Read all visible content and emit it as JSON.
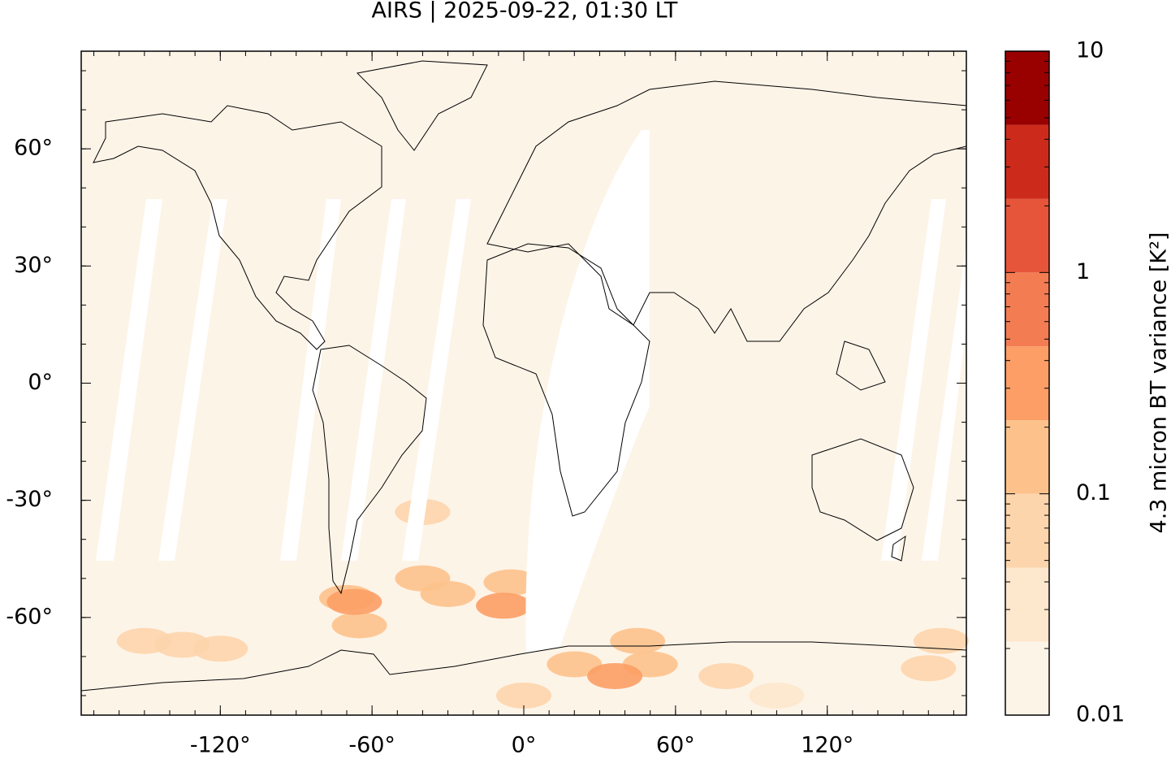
{
  "chart_data": {
    "type": "map",
    "title": "AIRS | 2025-09-22, 01:30 LT",
    "xlim": [
      -175,
      175
    ],
    "ylim": [
      -85,
      85
    ],
    "xticks": [
      {
        "value": -120,
        "label": "-120°"
      },
      {
        "value": -60,
        "label": "-60°"
      },
      {
        "value": 0,
        "label": "0°"
      },
      {
        "value": 60,
        "label": "60°"
      },
      {
        "value": 120,
        "label": "120°"
      }
    ],
    "yticks": [
      {
        "value": -60,
        "label": "-60°"
      },
      {
        "value": -30,
        "label": "-30°"
      },
      {
        "value": 0,
        "label": "0°"
      },
      {
        "value": 30,
        "label": "30°"
      },
      {
        "value": 60,
        "label": "60°"
      }
    ],
    "field": {
      "lon": [
        -120,
        -135,
        -150,
        0,
        100,
        80,
        160,
        165,
        -40,
        -40,
        -30,
        -5,
        -65,
        50,
        45,
        -70,
        20,
        -8,
        -67,
        36
      ],
      "lat": [
        -68,
        -67,
        -66,
        -80,
        -80,
        -75,
        -73,
        -66,
        -33,
        -50,
        -54,
        -51,
        -62,
        -72,
        -66,
        -55,
        -72,
        -57,
        -56,
        -75
      ],
      "values": [
        0.08,
        0.06,
        0.05,
        0.05,
        0.04,
        0.05,
        0.05,
        0.05,
        0.05,
        0.1,
        0.1,
        0.1,
        0.1,
        0.1,
        0.1,
        0.15,
        0.15,
        0.3,
        0.3,
        0.3
      ]
    },
    "colorbar": {
      "label": "4.3 micron BT variance [K²]",
      "scale": "log",
      "lim": [
        0.01,
        10
      ],
      "ticks": [
        0.01,
        0.1,
        1,
        10
      ],
      "levels": [
        0.01,
        0.0215,
        0.0464,
        0.1,
        0.215,
        0.464,
        1,
        2.15,
        4.64,
        10
      ],
      "colors": [
        "#fdf4e8",
        "#fde7cd",
        "#fdd5ac",
        "#fdc28c",
        "#fc9e65",
        "#f47c52",
        "#e6553a",
        "#cc2b1c",
        "#990000"
      ]
    }
  }
}
